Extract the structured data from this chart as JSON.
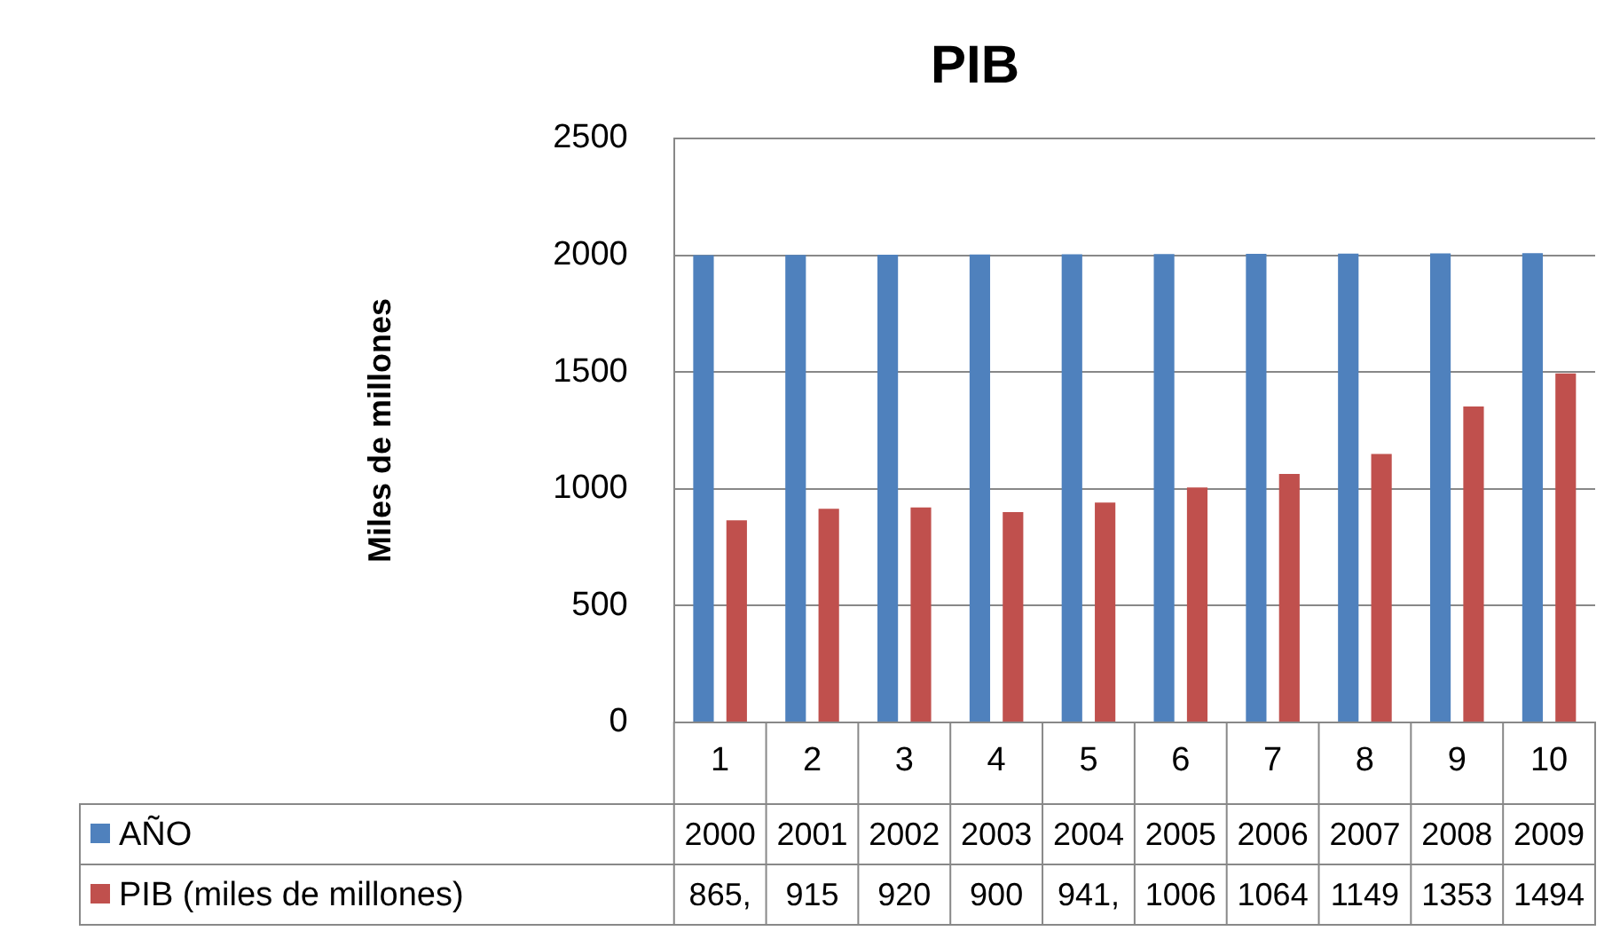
{
  "chart_data": {
    "type": "bar",
    "title": "PIB",
    "ylabel": "Miles de millones",
    "categories": [
      "1",
      "2",
      "3",
      "4",
      "5",
      "6",
      "7",
      "8",
      "9",
      "10"
    ],
    "series": [
      {
        "name": "AÑO",
        "color": "#4f81bd",
        "values": [
          2000,
          2001,
          2002,
          2003,
          2004,
          2005,
          2006,
          2007,
          2008,
          2009
        ],
        "value_labels": [
          "2000",
          "2001",
          "2002",
          "2003",
          "2004",
          "2005",
          "2006",
          "2007",
          "2008",
          "2009"
        ]
      },
      {
        "name": "PIB (miles de millones)",
        "color": "#c0504d",
        "values": [
          865,
          915,
          920,
          900,
          941,
          1006,
          1064,
          1149,
          1353,
          1494
        ],
        "value_labels": [
          "865,",
          "915",
          "920",
          "900",
          "941,",
          "1006",
          "1064",
          "1149",
          "1353",
          "1494"
        ]
      }
    ],
    "ylim": [
      0,
      2500
    ],
    "yticks": [
      0,
      500,
      1000,
      1500,
      2000,
      2500
    ],
    "grid": "y",
    "legend": "bottom left"
  }
}
